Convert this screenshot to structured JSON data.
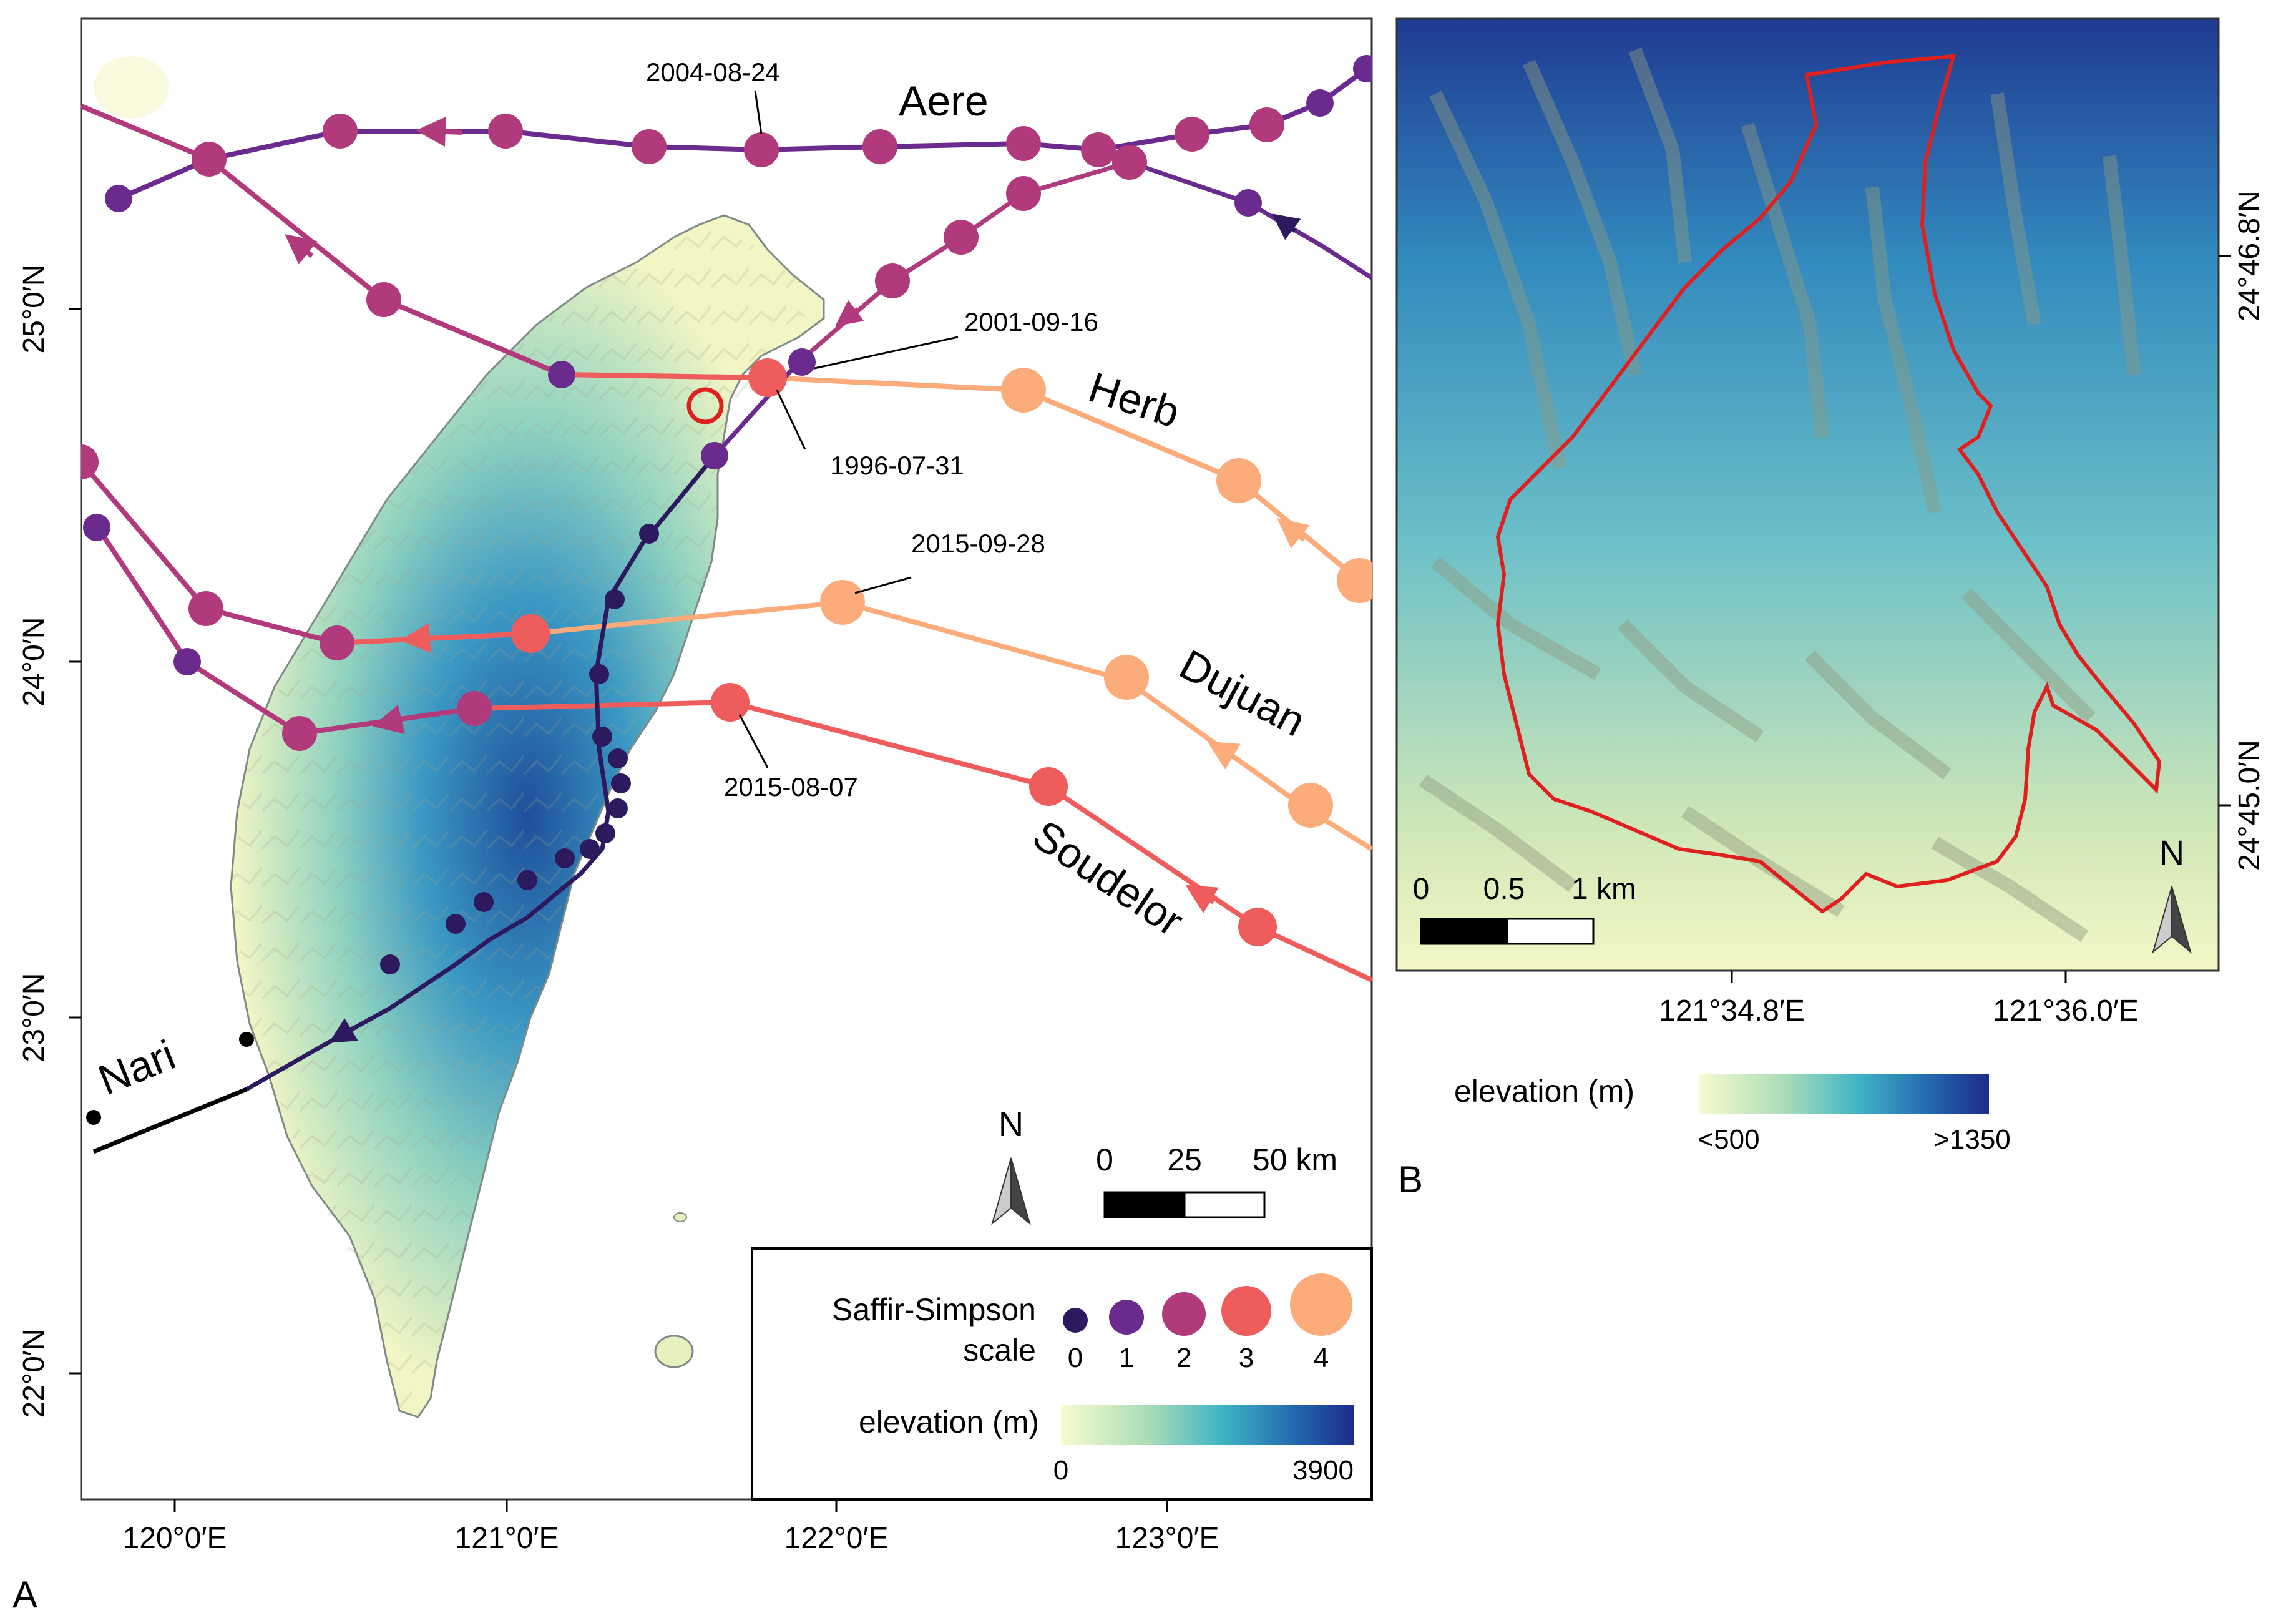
{
  "panel_a": {
    "label": "A",
    "lat_labels": [
      "25°0′N",
      "24°0′N",
      "23°0′N",
      "22°0′N"
    ],
    "lon_labels": [
      "120°0′E",
      "121°0′E",
      "122°0′E",
      "123°0′E"
    ],
    "storm_names": {
      "aere": "Aere",
      "herb": "Herb",
      "dujuan": "Dujuan",
      "soudelor": "Soudelor",
      "nari": "Nari"
    },
    "dates": {
      "aere": "2004-08-24",
      "nari": "2001-09-16",
      "herb": "1996-07-31",
      "dujuan": "2015-09-28",
      "soudelor": "2015-08-07"
    },
    "north": "N",
    "scale_bar": {
      "ticks": [
        "0",
        "25",
        "50 km"
      ]
    },
    "legend": {
      "scale_title_1": "Saffir-Simpson",
      "scale_title_2": "scale",
      "categories": [
        "0",
        "1",
        "2",
        "3",
        "4"
      ],
      "elevation_title": "elevation (m)",
      "elevation_min": "0",
      "elevation_max": "3900"
    }
  },
  "panel_b": {
    "label": "B",
    "lat_labels": [
      "24°46.8′N",
      "24°45.0′N"
    ],
    "lon_labels": [
      "121°34.8′E",
      "121°36.0′E"
    ],
    "north": "N",
    "scale_bar": {
      "ticks": [
        "0",
        "0.5",
        "1 km"
      ]
    },
    "legend": {
      "elevation_title": "elevation (m)",
      "elevation_min": "<500",
      "elevation_max": ">1350"
    }
  },
  "colors": {
    "cat0": "#2d1a5e",
    "cat1": "#6a2a8e",
    "cat2": "#b13a7c",
    "cat3": "#ee5c5c",
    "cat4": "#fbac7a",
    "land_low": "#f6f8c8",
    "land_mid": "#4fb8c8",
    "land_high": "#1b2f8c",
    "catchment": "#e0201f"
  }
}
